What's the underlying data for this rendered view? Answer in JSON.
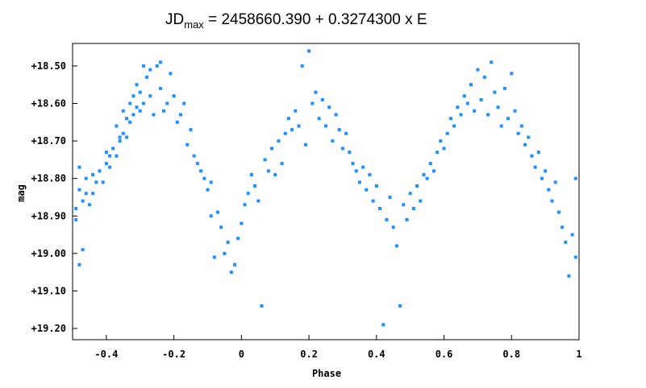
{
  "chart_data": {
    "type": "scatter",
    "title": {
      "prefix": "JD",
      "subscript": "max",
      "suffix": " = 2458660.390 + 0.3274300 x E"
    },
    "xlabel": "Phase",
    "ylabel": "mag",
    "xlim": [
      -0.5,
      1.0
    ],
    "ylim": [
      19.23,
      18.44
    ],
    "y_inverted": true,
    "grid": false,
    "x_ticks": [
      -0.4,
      -0.2,
      0,
      0.2,
      0.4,
      0.6,
      0.8,
      1
    ],
    "x_tick_labels": [
      "-0.4",
      "-0.2",
      "0",
      "0.2",
      "0.4",
      "0.6",
      "0.8",
      "1"
    ],
    "y_ticks": [
      18.5,
      18.6,
      18.7,
      18.8,
      18.9,
      19.0,
      19.1,
      19.2
    ],
    "y_tick_labels": [
      "+18.50",
      "+18.60",
      "+18.70",
      "+18.80",
      "+18.90",
      "+19.00",
      "+19.10",
      "+19.20"
    ],
    "marker_color": "#1e90ff",
    "series": [
      {
        "points": [
          [
            -0.49,
            18.88
          ],
          [
            -0.49,
            18.91
          ],
          [
            -0.48,
            18.83
          ],
          [
            -0.48,
            19.03
          ],
          [
            -0.48,
            18.77
          ],
          [
            -0.47,
            18.86
          ],
          [
            -0.47,
            18.99
          ],
          [
            -0.46,
            18.84
          ],
          [
            -0.46,
            18.8
          ],
          [
            -0.45,
            18.87
          ],
          [
            -0.44,
            18.79
          ],
          [
            -0.44,
            18.84
          ],
          [
            -0.43,
            18.81
          ],
          [
            -0.42,
            18.78
          ],
          [
            -0.41,
            18.81
          ],
          [
            -0.4,
            18.76
          ],
          [
            -0.4,
            18.73
          ],
          [
            -0.39,
            18.77
          ],
          [
            -0.39,
            18.74
          ],
          [
            -0.38,
            18.72
          ],
          [
            -0.37,
            18.66
          ],
          [
            -0.37,
            18.74
          ],
          [
            -0.36,
            18.7
          ],
          [
            -0.36,
            18.69
          ],
          [
            -0.35,
            18.68
          ],
          [
            -0.35,
            18.62
          ],
          [
            -0.34,
            18.64
          ],
          [
            -0.34,
            18.69
          ],
          [
            -0.33,
            18.6
          ],
          [
            -0.33,
            18.65
          ],
          [
            -0.32,
            18.63
          ],
          [
            -0.32,
            18.58
          ],
          [
            -0.31,
            18.61
          ],
          [
            -0.31,
            18.55
          ],
          [
            -0.3,
            18.57
          ],
          [
            -0.3,
            18.62
          ],
          [
            -0.29,
            18.5
          ],
          [
            -0.29,
            18.6
          ],
          [
            -0.28,
            18.53
          ],
          [
            -0.27,
            18.51
          ],
          [
            -0.27,
            18.58
          ],
          [
            -0.26,
            18.63
          ],
          [
            -0.25,
            18.5
          ],
          [
            -0.24,
            18.49
          ],
          [
            -0.24,
            18.56
          ],
          [
            -0.23,
            18.62
          ],
          [
            -0.22,
            18.6
          ],
          [
            -0.21,
            18.52
          ],
          [
            -0.2,
            18.58
          ],
          [
            -0.19,
            18.65
          ],
          [
            -0.18,
            18.63
          ],
          [
            -0.17,
            18.6
          ],
          [
            -0.16,
            18.71
          ],
          [
            -0.15,
            18.67
          ],
          [
            -0.14,
            18.74
          ],
          [
            -0.13,
            18.76
          ],
          [
            -0.12,
            18.78
          ],
          [
            -0.11,
            18.8
          ],
          [
            -0.1,
            18.83
          ],
          [
            -0.09,
            18.81
          ],
          [
            -0.09,
            18.9
          ],
          [
            -0.08,
            19.01
          ],
          [
            -0.07,
            18.89
          ],
          [
            -0.06,
            18.93
          ],
          [
            -0.05,
            19.0
          ],
          [
            -0.04,
            18.97
          ],
          [
            -0.03,
            19.05
          ],
          [
            -0.02,
            19.03
          ],
          [
            -0.01,
            18.96
          ],
          [
            0.0,
            18.92
          ],
          [
            0.01,
            18.87
          ],
          [
            0.02,
            18.84
          ],
          [
            0.03,
            18.79
          ],
          [
            0.04,
            18.82
          ],
          [
            0.05,
            18.86
          ],
          [
            0.06,
            19.14
          ],
          [
            0.07,
            18.75
          ],
          [
            0.08,
            18.78
          ],
          [
            0.09,
            18.72
          ],
          [
            0.1,
            18.79
          ],
          [
            0.11,
            18.7
          ],
          [
            0.12,
            18.76
          ],
          [
            0.13,
            18.68
          ],
          [
            0.14,
            18.64
          ],
          [
            0.15,
            18.67
          ],
          [
            0.16,
            18.62
          ],
          [
            0.17,
            18.66
          ],
          [
            0.18,
            18.5
          ],
          [
            0.19,
            18.71
          ],
          [
            0.2,
            18.46
          ],
          [
            0.21,
            18.6
          ],
          [
            0.22,
            18.57
          ],
          [
            0.23,
            18.64
          ],
          [
            0.24,
            18.59
          ],
          [
            0.25,
            18.66
          ],
          [
            0.26,
            18.61
          ],
          [
            0.27,
            18.7
          ],
          [
            0.28,
            18.63
          ],
          [
            0.29,
            18.67
          ],
          [
            0.3,
            18.72
          ],
          [
            0.31,
            18.68
          ],
          [
            0.32,
            18.73
          ],
          [
            0.33,
            18.76
          ],
          [
            0.34,
            18.78
          ],
          [
            0.35,
            18.81
          ],
          [
            0.36,
            18.77
          ],
          [
            0.37,
            18.83
          ],
          [
            0.38,
            18.79
          ],
          [
            0.39,
            18.86
          ],
          [
            0.4,
            18.82
          ],
          [
            0.41,
            18.88
          ],
          [
            0.42,
            19.19
          ],
          [
            0.43,
            18.91
          ],
          [
            0.44,
            18.85
          ],
          [
            0.45,
            18.93
          ],
          [
            0.46,
            18.98
          ],
          [
            0.47,
            19.14
          ],
          [
            0.48,
            18.87
          ],
          [
            0.49,
            18.91
          ],
          [
            0.5,
            18.84
          ],
          [
            0.51,
            18.88
          ],
          [
            0.52,
            18.82
          ],
          [
            0.53,
            18.86
          ],
          [
            0.54,
            18.79
          ],
          [
            0.55,
            18.8
          ],
          [
            0.56,
            18.76
          ],
          [
            0.57,
            18.78
          ],
          [
            0.58,
            18.73
          ],
          [
            0.59,
            18.7
          ],
          [
            0.6,
            18.72
          ],
          [
            0.61,
            18.68
          ],
          [
            0.62,
            18.64
          ],
          [
            0.63,
            18.66
          ],
          [
            0.64,
            18.61
          ],
          [
            0.65,
            18.63
          ],
          [
            0.66,
            18.58
          ],
          [
            0.67,
            18.6
          ],
          [
            0.68,
            18.55
          ],
          [
            0.69,
            18.62
          ],
          [
            0.7,
            18.51
          ],
          [
            0.71,
            18.59
          ],
          [
            0.72,
            18.53
          ],
          [
            0.73,
            18.63
          ],
          [
            0.74,
            18.49
          ],
          [
            0.75,
            18.57
          ],
          [
            0.76,
            18.61
          ],
          [
            0.77,
            18.66
          ],
          [
            0.78,
            18.56
          ],
          [
            0.79,
            18.64
          ],
          [
            0.8,
            18.52
          ],
          [
            0.81,
            18.62
          ],
          [
            0.82,
            18.68
          ],
          [
            0.83,
            18.66
          ],
          [
            0.84,
            18.71
          ],
          [
            0.85,
            18.69
          ],
          [
            0.86,
            18.74
          ],
          [
            0.87,
            18.77
          ],
          [
            0.88,
            18.73
          ],
          [
            0.89,
            18.8
          ],
          [
            0.9,
            18.78
          ],
          [
            0.91,
            18.83
          ],
          [
            0.92,
            18.86
          ],
          [
            0.93,
            18.81
          ],
          [
            0.94,
            18.89
          ],
          [
            0.95,
            18.93
          ],
          [
            0.96,
            18.97
          ],
          [
            0.97,
            19.06
          ],
          [
            0.98,
            18.95
          ],
          [
            0.99,
            18.8
          ],
          [
            0.99,
            19.01
          ]
        ]
      }
    ]
  }
}
